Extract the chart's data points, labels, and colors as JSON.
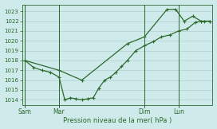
{
  "background_color": "#ceeaea",
  "grid_color": "#b0cccc",
  "line_color": "#2d6a2d",
  "xlabel": "Pression niveau de la mer( hPa )",
  "ylim": [
    1013.5,
    1023.7
  ],
  "yticks": [
    1014,
    1015,
    1016,
    1017,
    1018,
    1019,
    1020,
    1021,
    1022,
    1023
  ],
  "xtick_labels": [
    "Sam",
    "Mar",
    "Dim",
    "Lun"
  ],
  "xtick_positions": [
    0,
    24,
    84,
    108
  ],
  "xlim": [
    -2,
    132
  ],
  "vline_positions": [
    0,
    24,
    84,
    108
  ],
  "line1_x": [
    0,
    6,
    12,
    18,
    24,
    28,
    32,
    36,
    40,
    44,
    48,
    52,
    56,
    60,
    64,
    68,
    72,
    78,
    84,
    90,
    96,
    102,
    108,
    114,
    120,
    126,
    130
  ],
  "line1_y": [
    1018.0,
    1017.3,
    1017.0,
    1016.8,
    1016.3,
    1014.0,
    1014.2,
    1014.1,
    1014.0,
    1014.1,
    1014.2,
    1015.2,
    1016.0,
    1016.3,
    1016.8,
    1017.4,
    1018.0,
    1019.0,
    1019.5,
    1019.9,
    1020.4,
    1020.6,
    1021.0,
    1021.2,
    1021.9,
    1022.0,
    1022.0
  ],
  "line2_x": [
    0,
    24,
    40,
    72,
    84,
    100,
    106,
    112,
    118,
    124,
    130
  ],
  "line2_y": [
    1018.0,
    1017.0,
    1016.0,
    1019.7,
    1020.4,
    1023.2,
    1023.2,
    1022.0,
    1022.5,
    1022.0,
    1022.0
  ]
}
